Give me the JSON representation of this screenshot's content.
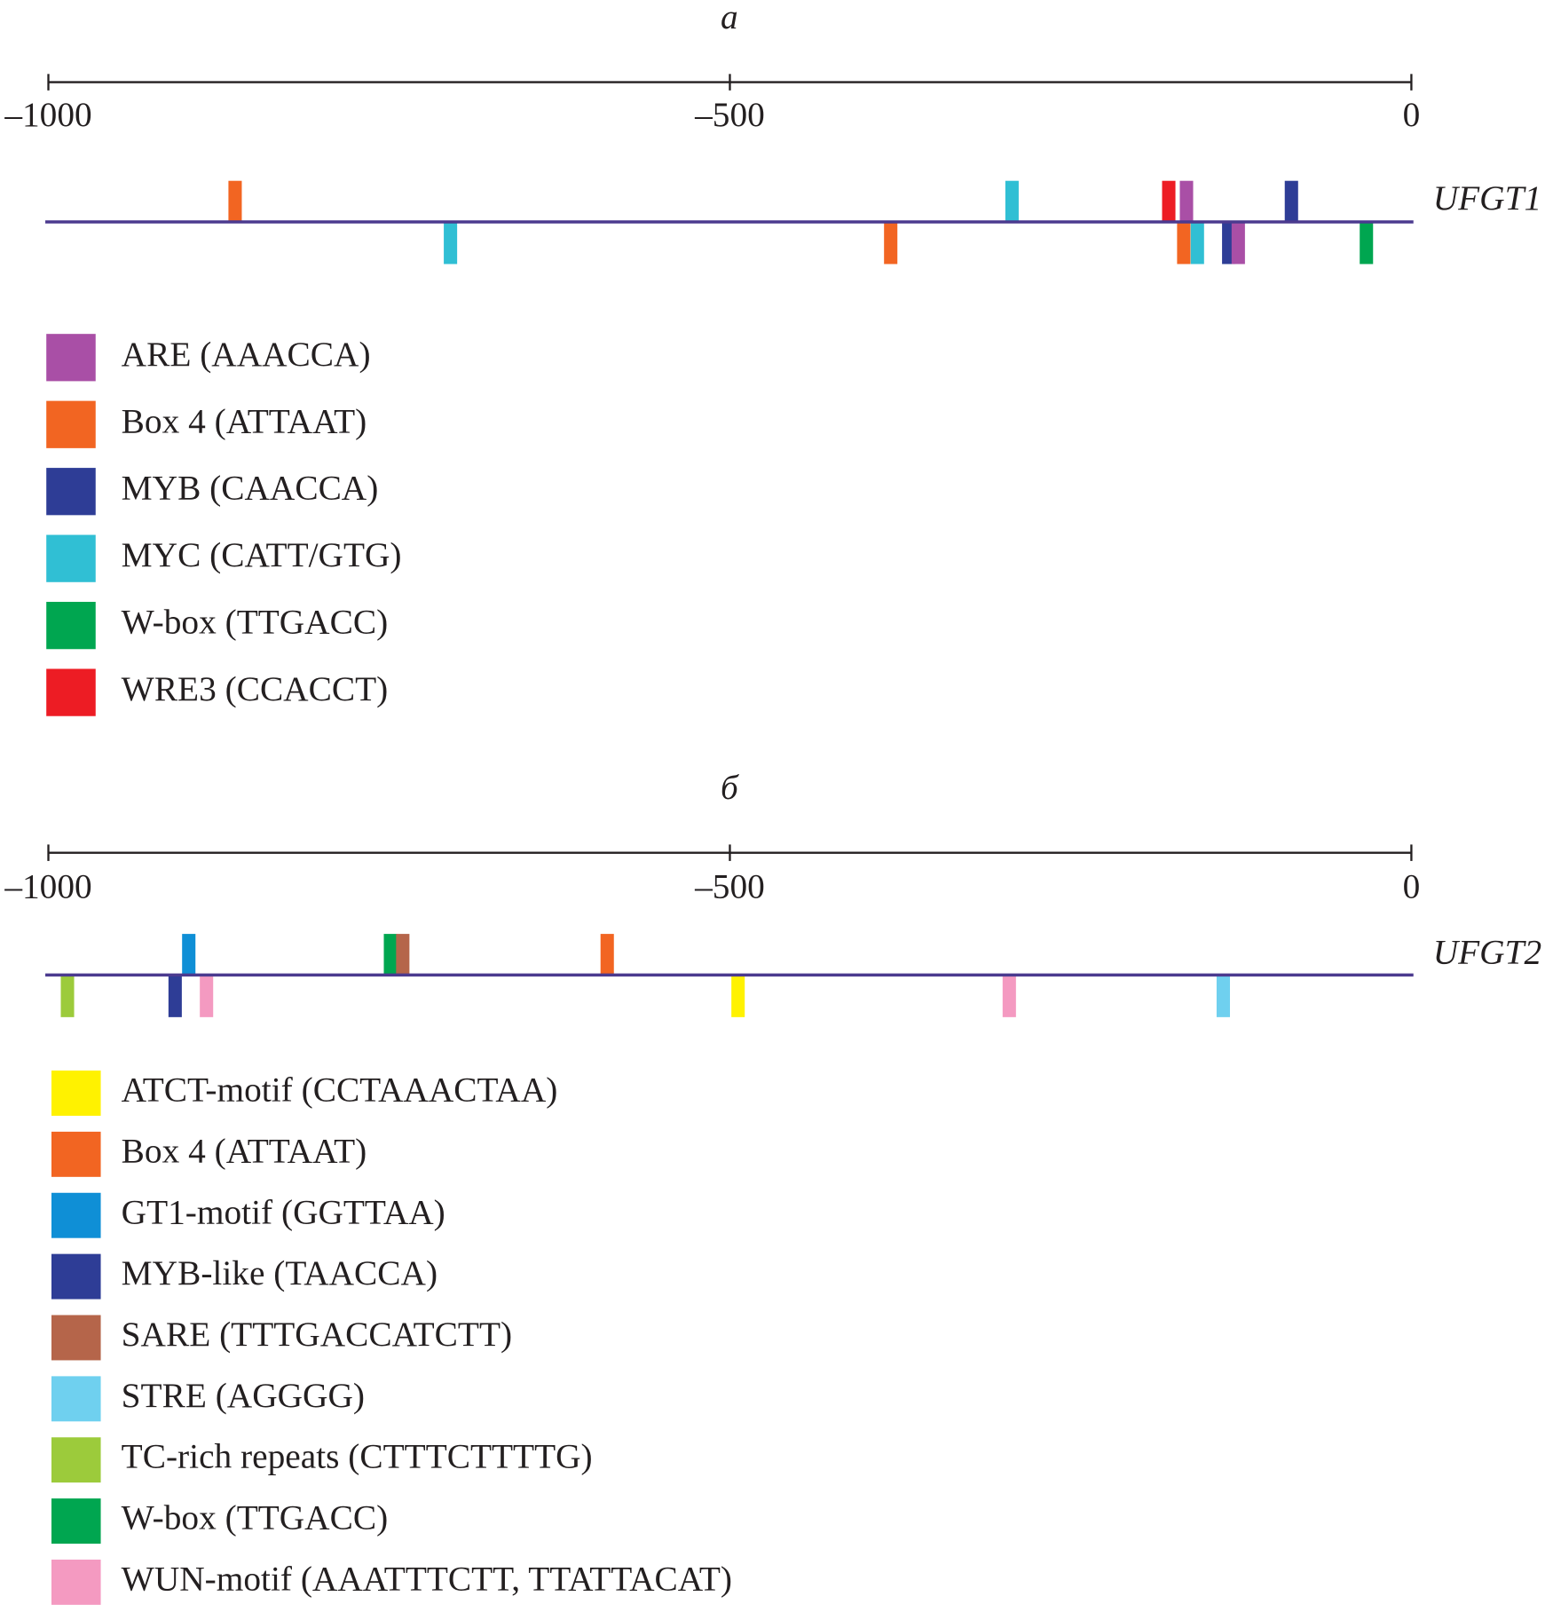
{
  "chart_data": [
    {
      "type": "marker",
      "title": "а",
      "gene": "UFGT1",
      "xlim": [
        -1000,
        0
      ],
      "xticks": [
        {
          "value": -1000,
          "label": "–1000"
        },
        {
          "value": -500,
          "label": "–500"
        },
        0
      ],
      "elements": [
        {
          "name": "ARE (AAACCA)",
          "color": "#a94fa6"
        },
        {
          "name": "Box 4 (ATTAAT)",
          "color": "#f26522"
        },
        {
          "name": "MYB (CAACCA)",
          "color": "#2e3d96"
        },
        {
          "name": "MYC (CATT/GTG)",
          "color": "#30bfd4"
        },
        {
          "name": "W-box (TTGACC)",
          "color": "#00a650"
        },
        {
          "name": "WRE3 (CCACCT)",
          "color": "#ed1c24"
        }
      ],
      "sites": [
        {
          "element": 1,
          "position": -863,
          "above": true
        },
        {
          "element": 3,
          "position": -293,
          "above": true
        },
        {
          "element": 5,
          "position": -178,
          "above": true
        },
        {
          "element": 0,
          "position": -165,
          "above": true
        },
        {
          "element": 2,
          "position": -88,
          "above": true
        },
        {
          "element": 3,
          "position": -705,
          "above": false
        },
        {
          "element": 1,
          "position": -382,
          "above": false
        },
        {
          "element": 1,
          "position": -167,
          "above": false
        },
        {
          "element": 3,
          "position": -157,
          "above": false
        },
        {
          "element": 2,
          "position": -134,
          "above": false
        },
        {
          "element": 0,
          "position": -127,
          "above": false
        },
        {
          "element": 4,
          "position": -33,
          "above": false
        }
      ]
    },
    {
      "type": "marker",
      "title": "б",
      "gene": "UFGT2",
      "xlim": [
        -1000,
        0
      ],
      "xticks": [
        {
          "value": -1000,
          "label": "–1000"
        },
        {
          "value": -500,
          "label": "–500"
        },
        0
      ],
      "elements": [
        {
          "name": "ATCT-motif (CCTAAACTAA)",
          "color": "#fff200"
        },
        {
          "name": "Box 4 (ATTAAT)",
          "color": "#f26522"
        },
        {
          "name": "GT1-motif (GGTTAA)",
          "color": "#0f8fd6"
        },
        {
          "name": "MYB-like (TAACCA)",
          "color": "#2e3d96"
        },
        {
          "name": "SARE (TTTGACCATCTT)",
          "color": "#b5654a"
        },
        {
          "name": "STRE (AGGGG)",
          "color": "#6fd0ef"
        },
        {
          "name": "TC-rich repeats (CTTTCTTTTG)",
          "color": "#9ccb3b"
        },
        {
          "name": "W-box (TTGACC)",
          "color": "#00a650"
        },
        {
          "name": "WUN-motif (AAATTTCTT, TTATTACAT)",
          "color": "#f49ac1"
        }
      ],
      "sites": [
        {
          "element": 2,
          "position": -897,
          "above": true
        },
        {
          "element": 7,
          "position": -749,
          "above": true
        },
        {
          "element": 4,
          "position": -740,
          "above": true
        },
        {
          "element": 1,
          "position": -590,
          "above": true
        },
        {
          "element": 6,
          "position": -986,
          "above": false
        },
        {
          "element": 3,
          "position": -907,
          "above": false
        },
        {
          "element": 8,
          "position": -884,
          "above": false
        },
        {
          "element": 0,
          "position": -494,
          "above": false
        },
        {
          "element": 8,
          "position": -295,
          "above": false
        },
        {
          "element": 5,
          "position": -138,
          "above": false
        }
      ]
    }
  ]
}
